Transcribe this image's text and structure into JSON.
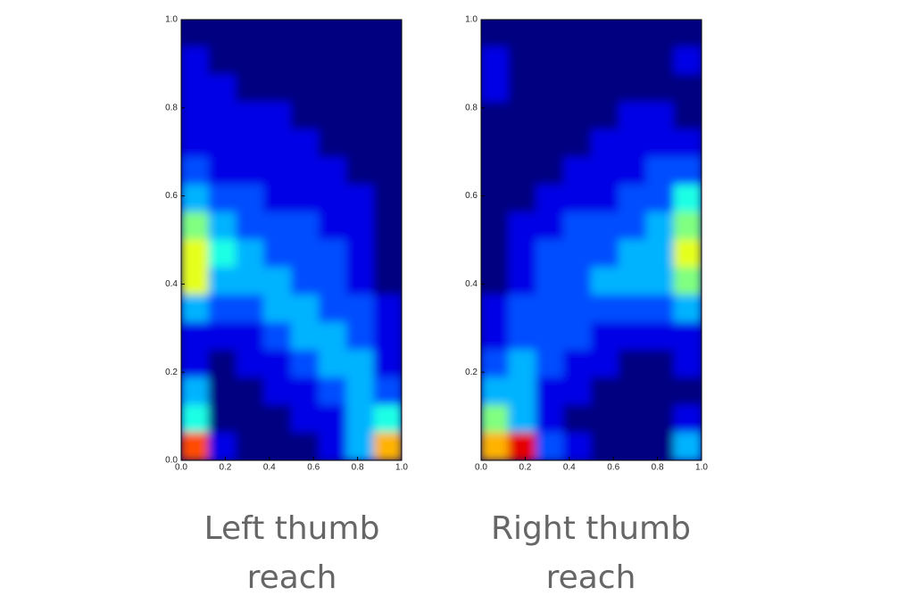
{
  "chart_data": [
    {
      "type": "heatmap",
      "caption": "Left thumb reach",
      "colormap": "jet",
      "zlim": [
        0,
        10
      ],
      "xlim": [
        0,
        1
      ],
      "ylim": [
        0,
        1
      ],
      "xticks": [
        {
          "value": 0,
          "label": "0.0"
        },
        {
          "value": 0.2,
          "label": "0.2"
        },
        {
          "value": 0.4,
          "label": "0.4"
        },
        {
          "value": 0.6,
          "label": "0.6"
        },
        {
          "value": 0.8,
          "label": "0.8"
        },
        {
          "value": 1,
          "label": "1.0"
        }
      ],
      "yticks": [
        {
          "value": 0,
          "label": "0.0"
        },
        {
          "value": 0.2,
          "label": "0.2"
        },
        {
          "value": 0.4,
          "label": "0.4"
        },
        {
          "value": 0.6,
          "label": "0.6"
        },
        {
          "value": 0.8,
          "label": "0.8"
        },
        {
          "value": 1,
          "label": "1.0"
        }
      ],
      "z": [
        [
          0,
          0,
          0,
          0,
          0,
          0,
          0,
          0
        ],
        [
          1,
          0,
          0,
          0,
          0,
          0,
          0,
          0
        ],
        [
          1,
          1,
          0,
          0,
          0,
          0,
          0,
          0
        ],
        [
          1,
          1,
          1,
          1,
          0,
          0,
          0,
          0
        ],
        [
          1,
          1,
          1,
          1,
          1,
          0,
          0,
          0
        ],
        [
          2,
          1,
          1,
          1,
          1,
          1,
          0,
          0
        ],
        [
          3,
          2,
          2,
          1,
          1,
          1,
          1,
          0
        ],
        [
          5,
          3,
          2,
          2,
          2,
          1,
          1,
          0
        ],
        [
          6,
          4,
          3,
          2,
          2,
          2,
          1,
          0
        ],
        [
          6,
          3,
          3,
          3,
          2,
          2,
          1,
          0
        ],
        [
          3,
          2,
          2,
          3,
          3,
          2,
          2,
          1
        ],
        [
          1,
          1,
          1,
          2,
          3,
          3,
          2,
          1
        ],
        [
          1,
          0,
          1,
          1,
          2,
          3,
          3,
          1
        ],
        [
          3,
          0,
          0,
          1,
          1,
          2,
          3,
          2
        ],
        [
          4,
          0,
          0,
          0,
          1,
          1,
          3,
          4
        ],
        [
          8,
          1,
          0,
          0,
          0,
          1,
          3,
          7
        ]
      ]
    },
    {
      "type": "heatmap",
      "caption": "Right thumb reach",
      "colormap": "jet",
      "zlim": [
        0,
        10
      ],
      "xlim": [
        0,
        1
      ],
      "ylim": [
        0,
        1
      ],
      "xticks": [
        {
          "value": 0,
          "label": "0.0"
        },
        {
          "value": 0.2,
          "label": "0.2"
        },
        {
          "value": 0.4,
          "label": "0.4"
        },
        {
          "value": 0.6,
          "label": "0.6"
        },
        {
          "value": 0.8,
          "label": "0.8"
        },
        {
          "value": 1,
          "label": "1.0"
        }
      ],
      "yticks": [
        {
          "value": 0.2,
          "label": "0.2"
        },
        {
          "value": 0.4,
          "label": "0.4"
        },
        {
          "value": 0.6,
          "label": "0.6"
        },
        {
          "value": 0.8,
          "label": "0.8"
        },
        {
          "value": 1,
          "label": "1.0"
        }
      ],
      "z": [
        [
          0,
          0,
          0,
          0,
          0,
          0,
          0,
          0
        ],
        [
          1,
          0,
          0,
          0,
          0,
          0,
          0,
          1
        ],
        [
          1,
          0,
          0,
          0,
          0,
          0,
          0,
          0
        ],
        [
          0,
          0,
          0,
          0,
          0,
          1,
          1,
          0
        ],
        [
          0,
          0,
          0,
          0,
          1,
          1,
          1,
          1
        ],
        [
          0,
          0,
          0,
          1,
          1,
          1,
          2,
          2
        ],
        [
          0,
          0,
          1,
          1,
          1,
          2,
          2,
          4
        ],
        [
          0,
          1,
          1,
          2,
          2,
          2,
          3,
          5
        ],
        [
          0,
          1,
          2,
          2,
          2,
          3,
          3,
          6
        ],
        [
          0,
          1,
          2,
          2,
          3,
          3,
          3,
          5
        ],
        [
          1,
          2,
          2,
          2,
          2,
          2,
          2,
          3
        ],
        [
          1,
          2,
          2,
          2,
          1,
          1,
          1,
          1
        ],
        [
          2,
          3,
          2,
          1,
          1,
          0,
          0,
          1
        ],
        [
          3,
          3,
          1,
          1,
          0,
          0,
          0,
          0
        ],
        [
          5,
          3,
          1,
          0,
          0,
          0,
          0,
          1
        ],
        [
          7,
          9,
          2,
          1,
          0,
          0,
          0,
          3
        ]
      ]
    }
  ]
}
